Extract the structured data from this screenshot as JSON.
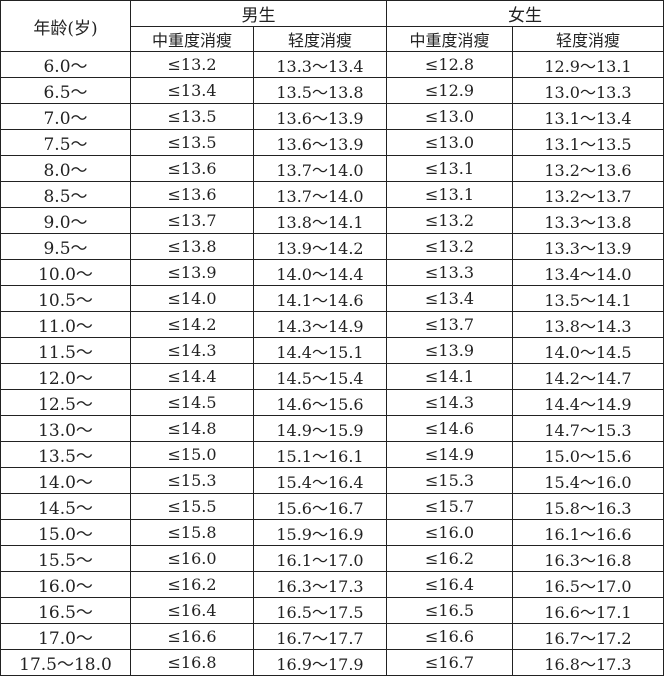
{
  "header": {
    "age": "年龄(岁)",
    "male": "男生",
    "female": "女生",
    "severe": "中重度消瘦",
    "mild": "轻度消瘦"
  },
  "rows": [
    [
      "6.0～",
      "≤13.2",
      "13.3～13.4",
      "≤12.8",
      "12.9～13.1"
    ],
    [
      "6.5～",
      "≤13.4",
      "13.5～13.8",
      "≤12.9",
      "13.0～13.3"
    ],
    [
      "7.0～",
      "≤13.5",
      "13.6～13.9",
      "≤13.0",
      "13.1～13.4"
    ],
    [
      "7.5～",
      "≤13.5",
      "13.6～13.9",
      "≤13.0",
      "13.1～13.5"
    ],
    [
      "8.0～",
      "≤13.6",
      "13.7～14.0",
      "≤13.1",
      "13.2～13.6"
    ],
    [
      "8.5～",
      "≤13.6",
      "13.7～14.0",
      "≤13.1",
      "13.2～13.7"
    ],
    [
      "9.0～",
      "≤13.7",
      "13.8～14.1",
      "≤13.2",
      "13.3～13.8"
    ],
    [
      "9.5～",
      "≤13.8",
      "13.9～14.2",
      "≤13.2",
      "13.3～13.9"
    ],
    [
      "10.0～",
      "≤13.9",
      "14.0～14.4",
      "≤13.3",
      "13.4～14.0"
    ],
    [
      "10.5～",
      "≤14.0",
      "14.1～14.6",
      "≤13.4",
      "13.5～14.1"
    ],
    [
      "11.0～",
      "≤14.2",
      "14.3～14.9",
      "≤13.7",
      "13.8～14.3"
    ],
    [
      "11.5～",
      "≤14.3",
      "14.4～15.1",
      "≤13.9",
      "14.0～14.5"
    ],
    [
      "12.0～",
      "≤14.4",
      "14.5～15.4",
      "≤14.1",
      "14.2～14.7"
    ],
    [
      "12.5～",
      "≤14.5",
      "14.6～15.6",
      "≤14.3",
      "14.4～14.9"
    ],
    [
      "13.0～",
      "≤14.8",
      "14.9～15.9",
      "≤14.6",
      "14.7～15.3"
    ],
    [
      "13.5～",
      "≤15.0",
      "15.1～16.1",
      "≤14.9",
      "15.0～15.6"
    ],
    [
      "14.0～",
      "≤15.3",
      "15.4～16.4",
      "≤15.3",
      "15.4～16.0"
    ],
    [
      "14.5～",
      "≤15.5",
      "15.6～16.7",
      "≤15.7",
      "15.8～16.3"
    ],
    [
      "15.0～",
      "≤15.8",
      "15.9～16.9",
      "≤16.0",
      "16.1～16.6"
    ],
    [
      "15.5～",
      "≤16.0",
      "16.1～17.0",
      "≤16.2",
      "16.3～16.8"
    ],
    [
      "16.0～",
      "≤16.2",
      "16.3～17.3",
      "≤16.4",
      "16.5～17.0"
    ],
    [
      "16.5～",
      "≤16.4",
      "16.5～17.5",
      "≤16.5",
      "16.6～17.1"
    ],
    [
      "17.0～",
      "≤16.6",
      "16.7～17.7",
      "≤16.6",
      "16.7～17.2"
    ],
    [
      "17.5～18.0",
      "≤16.8",
      "16.9～17.9",
      "≤16.7",
      "16.8～17.3"
    ]
  ]
}
